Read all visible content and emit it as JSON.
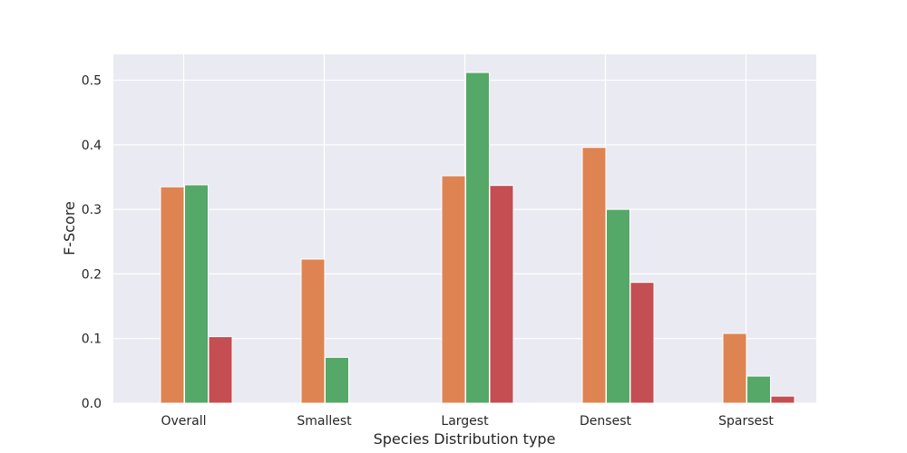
{
  "chart_data": {
    "type": "bar",
    "xlabel": "Species Distribution type",
    "ylabel": "F-Score",
    "categories": [
      "Overall",
      "Smallest",
      "Largest",
      "Densest",
      "Sparsest"
    ],
    "ylim": [
      0,
      0.54
    ],
    "yticks": [
      "0.0",
      "0.1",
      "0.2",
      "0.3",
      "0.4",
      "0.5"
    ],
    "grid": true,
    "legend": "none",
    "series": [
      {
        "color": "#DD8452",
        "values": [
          0.335,
          0.223,
          0.352,
          0.396,
          0.108
        ]
      },
      {
        "color": "#55A868",
        "values": [
          0.338,
          0.071,
          0.512,
          0.3,
          0.042
        ]
      },
      {
        "color": "#C44E52",
        "values": [
          0.103,
          0.0,
          0.337,
          0.187,
          0.011
        ]
      }
    ],
    "colors": {
      "plot_background": "#EAEAF2",
      "grid": "#FFFFFF",
      "text": "#262626"
    }
  }
}
